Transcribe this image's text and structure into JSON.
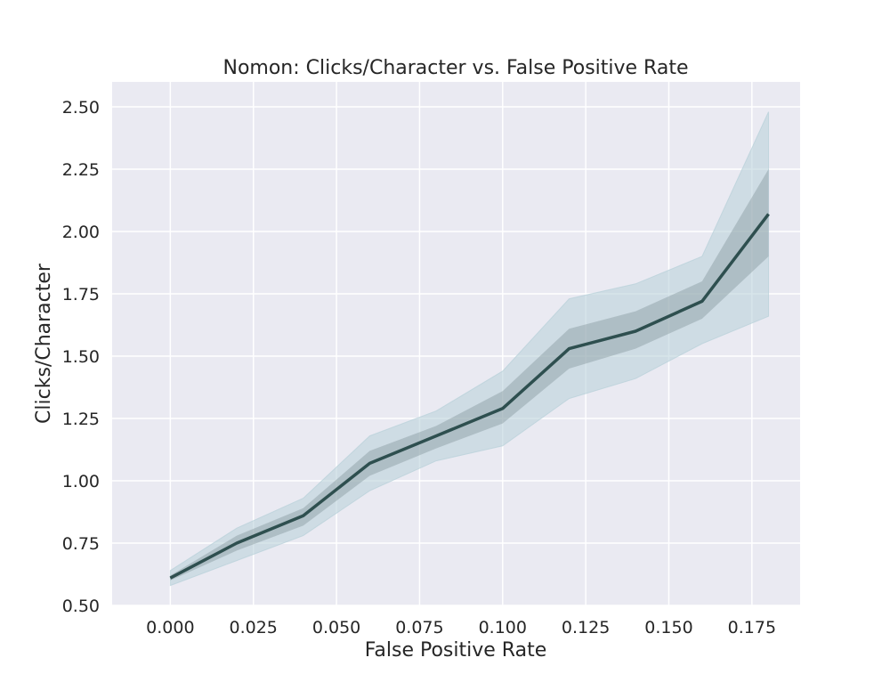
{
  "chart_data": {
    "type": "line",
    "title": "Nomon: Clicks/Character vs. False Positive Rate",
    "xlabel": "False Positive Rate",
    "ylabel": "Clicks/Character",
    "xlim": [
      -0.0175,
      0.1895
    ],
    "ylim": [
      0.5,
      2.6
    ],
    "x_ticks": [
      "0.000",
      "0.025",
      "0.050",
      "0.075",
      "0.100",
      "0.125",
      "0.150",
      "0.175"
    ],
    "y_ticks": [
      "0.50",
      "0.75",
      "1.00",
      "1.25",
      "1.50",
      "1.75",
      "2.00",
      "2.25",
      "2.50"
    ],
    "grid": true,
    "series": [
      {
        "x": [
          0.0,
          0.02,
          0.04,
          0.06,
          0.08,
          0.1,
          0.12,
          0.14,
          0.16,
          0.18
        ],
        "values": [
          0.61,
          0.75,
          0.86,
          1.07,
          1.18,
          1.29,
          1.53,
          1.6,
          1.72,
          2.07
        ],
        "inner_band_low": [
          0.6,
          0.72,
          0.82,
          1.02,
          1.13,
          1.23,
          1.45,
          1.53,
          1.65,
          1.9
        ],
        "inner_band_high": [
          0.62,
          0.78,
          0.89,
          1.12,
          1.22,
          1.36,
          1.61,
          1.68,
          1.8,
          2.25
        ],
        "outer_band_low": [
          0.58,
          0.68,
          0.78,
          0.96,
          1.08,
          1.14,
          1.33,
          1.41,
          1.55,
          1.66
        ],
        "outer_band_high": [
          0.64,
          0.81,
          0.93,
          1.18,
          1.28,
          1.44,
          1.73,
          1.79,
          1.9,
          2.48
        ]
      }
    ],
    "colors": {
      "plot_background": "#eaeaf2",
      "grid": "#ffffff",
      "line": "#2e4f4f",
      "outer_band": "#b7d0d8",
      "inner_band": "#7f9196"
    }
  }
}
